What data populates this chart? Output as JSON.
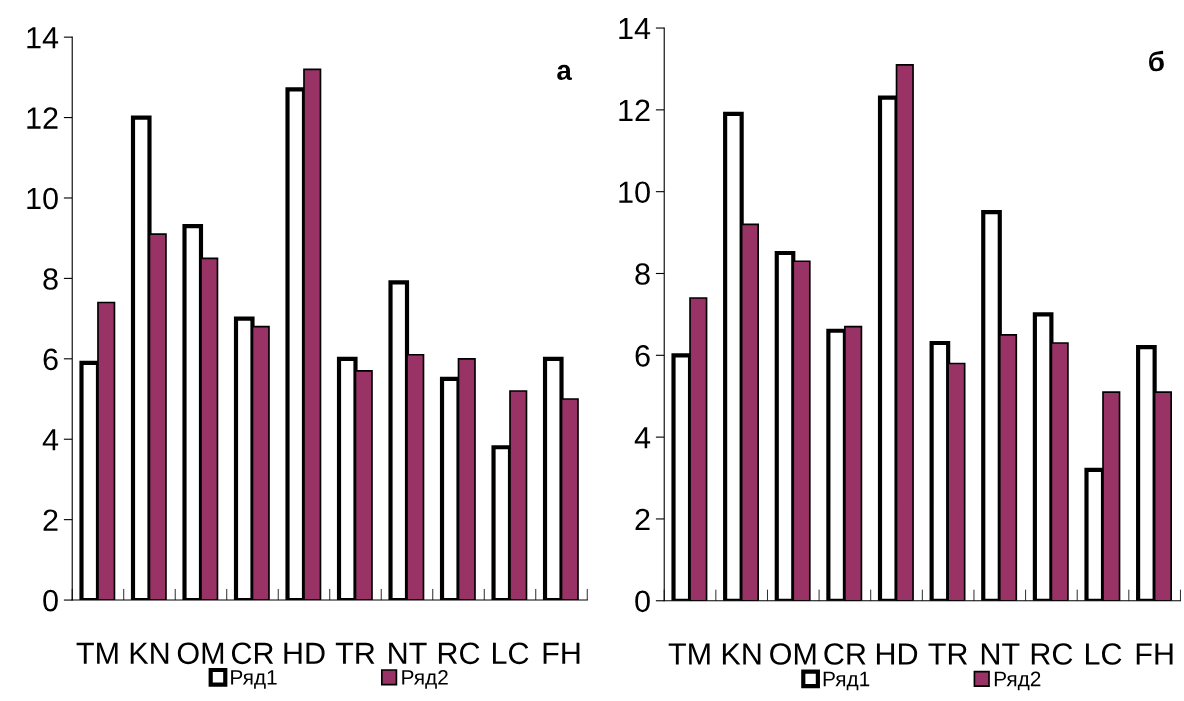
{
  "chart_data": [
    {
      "type": "bar",
      "title": "а",
      "categories": [
        "TM",
        "KN",
        "OM",
        "CR",
        "HD",
        "TR",
        "NT",
        "RC",
        "LC",
        "FH"
      ],
      "ylim": [
        0,
        14
      ],
      "yticks": [
        0,
        2,
        4,
        6,
        8,
        10,
        12,
        14
      ],
      "grid": false,
      "legend": "bottom",
      "series": [
        {
          "name": "Ряд1",
          "color": "#ffffff",
          "values": [
            5.9,
            12.0,
            9.3,
            7.0,
            12.7,
            6.0,
            7.9,
            5.5,
            3.8,
            6.0
          ]
        },
        {
          "name": "Ряд2",
          "color": "#993366",
          "values": [
            7.4,
            9.1,
            8.5,
            6.8,
            13.2,
            5.7,
            6.1,
            6.0,
            5.2,
            5.0
          ]
        }
      ]
    },
    {
      "type": "bar",
      "title": "б",
      "categories": [
        "TM",
        "KN",
        "OM",
        "CR",
        "HD",
        "TR",
        "NT",
        "RC",
        "LC",
        "FH"
      ],
      "ylim": [
        0,
        14
      ],
      "yticks": [
        0,
        2,
        4,
        6,
        8,
        10,
        12,
        14
      ],
      "grid": false,
      "legend": "bottom",
      "series": [
        {
          "name": "Ряд1",
          "color": "#ffffff",
          "values": [
            6.0,
            11.9,
            8.5,
            6.6,
            12.3,
            6.3,
            9.5,
            7.0,
            3.2,
            6.2
          ]
        },
        {
          "name": "Ряд2",
          "color": "#993366",
          "values": [
            7.4,
            9.2,
            8.3,
            6.7,
            13.1,
            5.8,
            6.5,
            6.3,
            5.1,
            5.1
          ]
        }
      ]
    }
  ]
}
